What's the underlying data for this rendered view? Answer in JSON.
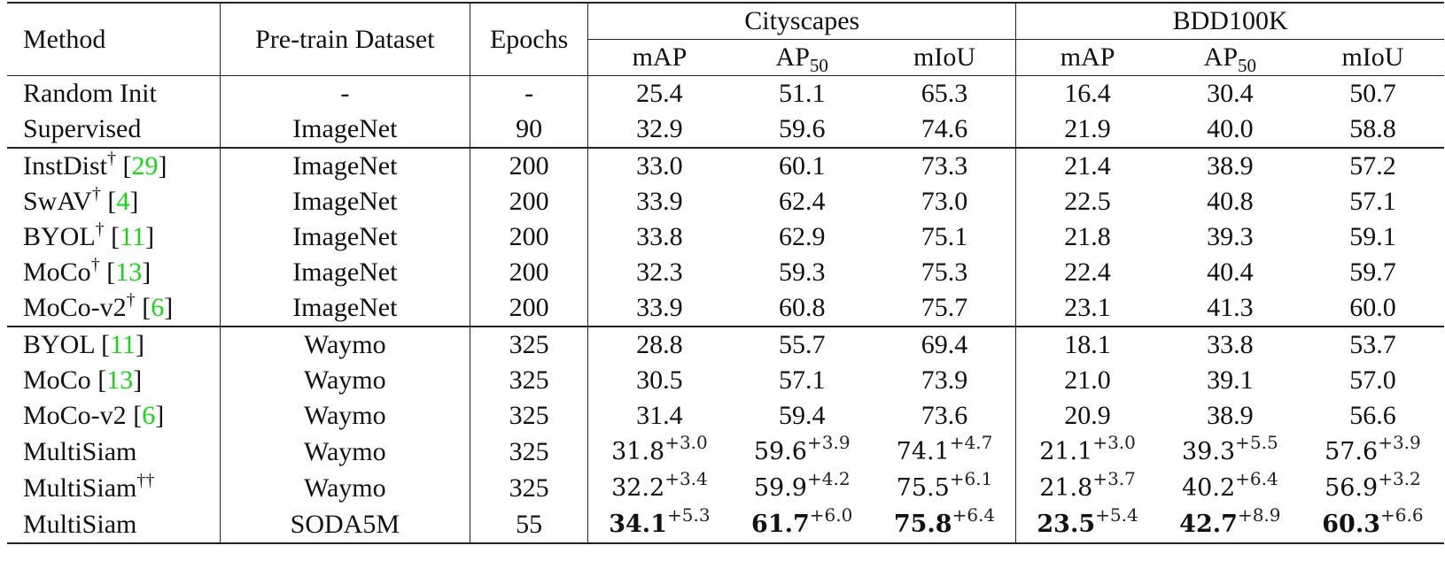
{
  "table": {
    "headers": {
      "method": "Method",
      "dataset": "Pre-train Dataset",
      "epochs": "Epochs",
      "groups": [
        "Cityscapes",
        "BDD100K"
      ],
      "metrics": [
        {
          "base": "mAP",
          "sub": ""
        },
        {
          "base": "AP",
          "sub": "50"
        },
        {
          "base": "mIoU",
          "sub": ""
        },
        {
          "base": "mAP",
          "sub": ""
        },
        {
          "base": "AP",
          "sub": "50"
        },
        {
          "base": "mIoU",
          "sub": ""
        }
      ]
    },
    "groups": [
      {
        "rows": [
          {
            "method": "Random Init",
            "dagger": "",
            "cite": "",
            "dataset": "-",
            "epochs": "-",
            "values": [
              "25.4",
              "51.1",
              "65.3",
              "16.4",
              "30.4",
              "50.7"
            ]
          },
          {
            "method": "Supervised",
            "dagger": "",
            "cite": "",
            "dataset": "ImageNet",
            "epochs": "90",
            "values": [
              "32.9",
              "59.6",
              "74.6",
              "21.9",
              "40.0",
              "58.8"
            ]
          }
        ]
      },
      {
        "rows": [
          {
            "method": "InstDist",
            "dagger": "†",
            "cite": "29",
            "dataset": "ImageNet",
            "epochs": "200",
            "values": [
              "33.0",
              "60.1",
              "73.3",
              "21.4",
              "38.9",
              "57.2"
            ]
          },
          {
            "method": "SwAV",
            "dagger": "†",
            "cite": "4",
            "dataset": "ImageNet",
            "epochs": "200",
            "values": [
              "33.9",
              "62.4",
              "73.0",
              "22.5",
              "40.8",
              "57.1"
            ]
          },
          {
            "method": "BYOL",
            "dagger": "†",
            "cite": "11",
            "dataset": "ImageNet",
            "epochs": "200",
            "values": [
              "33.8",
              "62.9",
              "75.1",
              "21.8",
              "39.3",
              "59.1"
            ]
          },
          {
            "method": "MoCo",
            "dagger": "†",
            "cite": "13",
            "dataset": "ImageNet",
            "epochs": "200",
            "values": [
              "32.3",
              "59.3",
              "75.3",
              "22.4",
              "40.4",
              "59.7"
            ]
          },
          {
            "method": "MoCo-v2",
            "dagger": "†",
            "cite": "6",
            "dataset": "ImageNet",
            "epochs": "200",
            "values": [
              "33.9",
              "60.8",
              "75.7",
              "23.1",
              "41.3",
              "60.0"
            ]
          }
        ]
      },
      {
        "rows": [
          {
            "method": "BYOL",
            "dagger": "",
            "cite": "11",
            "dataset": "Waymo",
            "epochs": "325",
            "values": [
              "28.8",
              "55.7",
              "69.4",
              "18.1",
              "33.8",
              "53.7"
            ]
          },
          {
            "method": "MoCo",
            "dagger": "",
            "cite": "13",
            "dataset": "Waymo",
            "epochs": "325",
            "values": [
              "30.5",
              "57.1",
              "73.9",
              "21.0",
              "39.1",
              "57.0"
            ]
          },
          {
            "method": "MoCo-v2",
            "dagger": "",
            "cite": "6",
            "dataset": "Waymo",
            "epochs": "325",
            "values": [
              "31.4",
              "59.4",
              "73.6",
              "20.9",
              "38.9",
              "56.6"
            ]
          },
          {
            "method": "MultiSiam",
            "dagger": "",
            "cite": "",
            "dataset": "Waymo",
            "epochs": "325",
            "values": [
              "31.8",
              "59.6",
              "74.1",
              "21.1",
              "39.3",
              "57.6"
            ],
            "deltas": [
              "+3.0",
              "+3.9",
              "+4.7",
              "+3.0",
              "+5.5",
              "+3.9"
            ],
            "bold": false
          },
          {
            "method": "MultiSiam",
            "dagger": "††",
            "cite": "",
            "dataset": "Waymo",
            "epochs": "325",
            "values": [
              "32.2",
              "59.9",
              "75.5",
              "21.8",
              "40.2",
              "56.9"
            ],
            "deltas": [
              "+3.4",
              "+4.2",
              "+6.1",
              "+3.7",
              "+6.4",
              "+3.2"
            ],
            "bold": false
          },
          {
            "method": "MultiSiam",
            "dagger": "",
            "cite": "",
            "dataset": "SODA5M",
            "epochs": "55",
            "values": [
              "34.1",
              "61.7",
              "75.8",
              "23.5",
              "42.7",
              "60.3"
            ],
            "deltas": [
              "+5.3",
              "+6.0",
              "+6.4",
              "+5.4",
              "+8.9",
              "+6.6"
            ],
            "bold": true
          }
        ]
      }
    ]
  },
  "colors": {
    "citation": "#19d419",
    "text": "#111111",
    "rule": "#222222"
  }
}
